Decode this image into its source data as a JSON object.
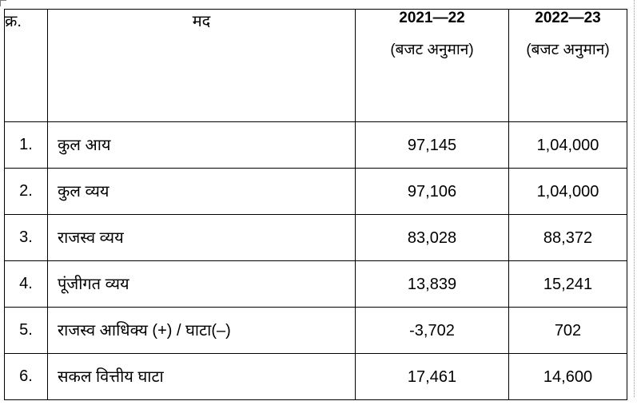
{
  "table": {
    "headers": {
      "serial": "क्र.",
      "item": "मद",
      "year1": "2021—22",
      "year1_sub": "(बजट  अनुमान)",
      "year2": "2022—23",
      "year2_sub": "(बजट अनुमान)"
    },
    "rows": [
      {
        "serial": "1.",
        "item": "कुल आय",
        "year1": "97,145",
        "year2": "1,04,000"
      },
      {
        "serial": "2.",
        "item": "कुल व्यय",
        "year1": "97,106",
        "year2": "1,04,000"
      },
      {
        "serial": "3.",
        "item": "राजस्व व्यय",
        "year1": "83,028",
        "year2": "88,372"
      },
      {
        "serial": "4.",
        "item": "पूंजीगत व्यय",
        "year1": "13,839",
        "year2": "15,241"
      },
      {
        "serial": "5.",
        "item": "राजस्व आधिक्य (+) / घाटा(–)",
        "year1": "-3,702",
        "year2": "702"
      },
      {
        "serial": "6.",
        "item": "सकल वित्तीय घाटा",
        "year1": "17,461",
        "year2": "14,600"
      }
    ]
  }
}
